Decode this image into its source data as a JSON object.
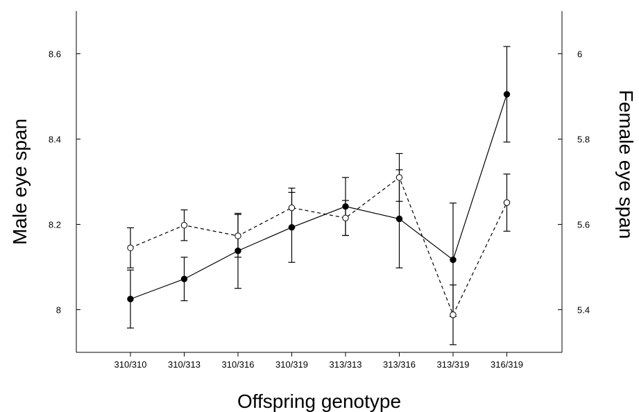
{
  "chart_data": {
    "type": "line",
    "xlabel": "Offspring genotype",
    "ylabel_left": "Male eye span",
    "ylabel_right": "Female eye span",
    "categories": [
      "310/310",
      "310/313",
      "310/316",
      "310/319",
      "313/313",
      "313/316",
      "313/319",
      "316/319"
    ],
    "left_axis": {
      "ylim": [
        7.9,
        8.7
      ],
      "ticks": [
        "8",
        "8.2",
        "8.4",
        "8.6"
      ],
      "tick_values": [
        8,
        8.2,
        8.4,
        8.6
      ]
    },
    "right_axis": {
      "ylim": [
        5.3,
        6.1
      ],
      "ticks": [
        "5.4",
        "5.6",
        "5.8",
        "6"
      ],
      "tick_values": [
        5.4,
        5.6,
        5.8,
        6.0
      ]
    },
    "grid": false,
    "series": [
      {
        "axis": "left",
        "marker": "filled-circle",
        "line_style": "solid",
        "values": [
          8.025,
          8.072,
          8.138,
          8.193,
          8.242,
          8.213,
          8.117,
          8.505
        ],
        "errors": [
          0.068,
          0.051,
          0.088,
          0.082,
          0.068,
          0.115,
          0.133,
          0.112
        ]
      },
      {
        "axis": "right",
        "marker": "open-circle",
        "line_style": "dashed",
        "values": [
          5.545,
          5.598,
          5.573,
          5.639,
          5.615,
          5.71,
          5.388,
          5.651
        ],
        "errors": [
          0.047,
          0.036,
          0.05,
          0.046,
          0.041,
          0.056,
          0.07,
          0.067
        ]
      }
    ]
  }
}
